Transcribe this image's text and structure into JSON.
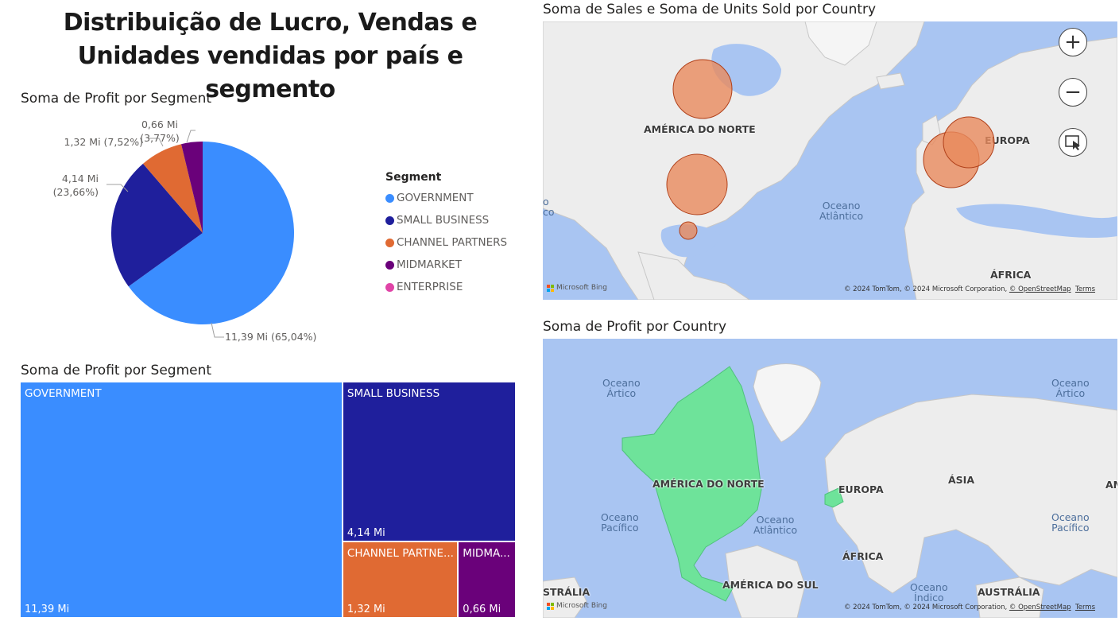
{
  "title": "Distribuição de Lucro, Vendas e Unidades vendidas por país e segmento",
  "pie": {
    "title": "Soma de Profit por Segment",
    "labels": [
      "11,39 Mi (65,04%)",
      "4,14 Mi\n(23,66%)",
      "1,32 Mi (7,52%)",
      "0,66 Mi\n(3,77%)"
    ]
  },
  "legend": {
    "title": "Segment",
    "items": [
      {
        "label": "GOVERNMENT",
        "color": "#3a8dff"
      },
      {
        "label": "SMALL BUSINESS",
        "color": "#1f1f9c"
      },
      {
        "label": "CHANNEL PARTNERS",
        "color": "#e06a33"
      },
      {
        "label": "MIDMARKET",
        "color": "#6a017a"
      },
      {
        "label": "ENTERPRISE",
        "color": "#e044a7"
      }
    ]
  },
  "treemap": {
    "title": "Soma de Profit por Segment",
    "cells": [
      {
        "label": "GOVERNMENT",
        "value": "11,39 Mi"
      },
      {
        "label": "SMALL BUSINESS",
        "value": "4,14 Mi"
      },
      {
        "label": "CHANNEL PARTNE...",
        "value": "1,32 Mi"
      },
      {
        "label": "MIDMA...",
        "value": "0,66 Mi"
      }
    ]
  },
  "map1": {
    "title": "Soma de Sales e Soma de Units Sold por Country",
    "labels": {
      "north_america": "AMÉRICA DO NORTE",
      "europe": "EUROPA",
      "africa": "ÁFRICA",
      "atlantic": "Oceano\nAtlântico",
      "edge": "o\nco"
    },
    "attribution": "© 2024 TomTom, © 2024 Microsoft Corporation,",
    "osm": "© OpenStreetMap",
    "terms": "Terms",
    "bing": "Microsoft Bing",
    "bubble_color": "#e8895c",
    "zoom_in": "+",
    "zoom_out": "−"
  },
  "map2": {
    "title": "Soma de Profit por Country",
    "labels": {
      "north_america": "AMÉRICA DO NORTE",
      "europe": "EUROPA",
      "asia": "ÁSIA",
      "africa": "ÁFRICA",
      "south_america": "AMÉRICA DO SUL",
      "australia_left": "STRÁLIA",
      "australia": "AUSTRÁLIA",
      "edge_right": "AM"
    },
    "oceans": {
      "arctic_left": "Oceano\nÁrtico",
      "arctic_right": "Oceano\nÁrtico",
      "pacific_left": "Oceano\nPacífico",
      "atlantic": "Oceano\nAtlântico",
      "pacific_right": "Oceano\nPacífico",
      "indian": "Oceano\nÍndico"
    },
    "attribution": "© 2024 TomTom, © 2024 Microsoft Corporation,",
    "osm": "© OpenStreetMap",
    "terms": "Terms",
    "bing": "Microsoft Bing",
    "fill_color": "#6ee39a"
  },
  "chart_data": [
    {
      "type": "pie",
      "title": "Soma de Profit por Segment",
      "categories": [
        "GOVERNMENT",
        "SMALL BUSINESS",
        "CHANNEL PARTNERS",
        "MIDMARKET",
        "ENTERPRISE"
      ],
      "values": [
        11.39,
        4.14,
        1.32,
        0.66,
        0
      ],
      "percent": [
        65.04,
        23.66,
        7.52,
        3.77,
        0
      ],
      "legend": "right"
    },
    {
      "type": "heatmap",
      "subtype": "treemap",
      "title": "Soma de Profit por Segment",
      "categories": [
        "GOVERNMENT",
        "SMALL BUSINESS",
        "CHANNEL PARTNERS",
        "MIDMARKET"
      ],
      "values": [
        11.39,
        4.14,
        1.32,
        0.66
      ]
    }
  ]
}
